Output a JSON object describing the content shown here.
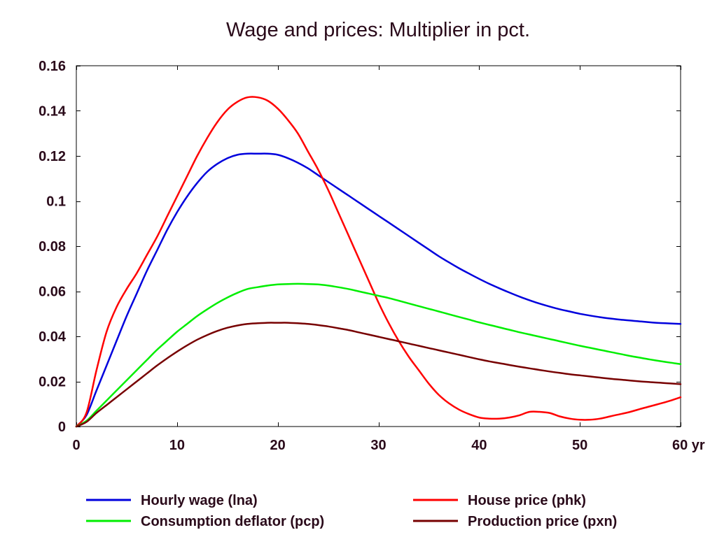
{
  "chart_data": {
    "type": "line",
    "title": "Wage and prices: Multiplier in pct.",
    "xlabel": "",
    "ylabel": "",
    "xlim": [
      0,
      60
    ],
    "ylim": [
      0,
      0.16
    ],
    "x_ticks": [
      0,
      10,
      20,
      30,
      40,
      50,
      60
    ],
    "x_tick_labels": [
      "0",
      "10",
      "20",
      "30",
      "40",
      "50",
      "60 yr"
    ],
    "y_ticks": [
      0,
      0.02,
      0.04,
      0.06,
      0.08,
      0.1,
      0.12,
      0.14,
      0.16
    ],
    "y_tick_labels": [
      "0",
      "0.02",
      "0.04",
      "0.06",
      "0.08",
      "0.1",
      "0.12",
      "0.14",
      "0.16"
    ],
    "grid": false,
    "legend_position": "bottom",
    "x": [
      0,
      1,
      2,
      3,
      4,
      5,
      6,
      7,
      8,
      9,
      10,
      11,
      12,
      13,
      14,
      15,
      16,
      17,
      18,
      19,
      20,
      21,
      22,
      23,
      24,
      25,
      26,
      27,
      28,
      29,
      30,
      31,
      32,
      33,
      34,
      35,
      36,
      37,
      38,
      39,
      40,
      41,
      42,
      43,
      44,
      45,
      46,
      47,
      48,
      49,
      50,
      51,
      52,
      53,
      54,
      55,
      56,
      57,
      58,
      59,
      60
    ],
    "series": [
      {
        "name": "Hourly wage (lna)",
        "color": "#0000dd",
        "values": [
          0,
          0.005,
          0.016,
          0.027,
          0.038,
          0.049,
          0.059,
          0.069,
          0.078,
          0.087,
          0.095,
          0.102,
          0.108,
          0.113,
          0.1165,
          0.119,
          0.1205,
          0.121,
          0.121,
          0.121,
          0.1205,
          0.119,
          0.117,
          0.1145,
          0.1115,
          0.1085,
          0.1055,
          0.1025,
          0.0995,
          0.0965,
          0.0935,
          0.0905,
          0.0875,
          0.0845,
          0.0815,
          0.0785,
          0.0755,
          0.0728,
          0.0702,
          0.0678,
          0.0655,
          0.0633,
          0.0613,
          0.0594,
          0.0576,
          0.056,
          0.0545,
          0.0532,
          0.052,
          0.051,
          0.05,
          0.0492,
          0.0485,
          0.0479,
          0.0474,
          0.047,
          0.0466,
          0.0462,
          0.0459,
          0.0457,
          0.0455
        ]
      },
      {
        "name": "House price (phk)",
        "color": "#ff0000",
        "values": [
          0,
          0.006,
          0.025,
          0.042,
          0.053,
          0.061,
          0.068,
          0.076,
          0.084,
          0.093,
          0.102,
          0.111,
          0.12,
          0.128,
          0.135,
          0.1405,
          0.144,
          0.146,
          0.146,
          0.1445,
          0.141,
          0.136,
          0.13,
          0.122,
          0.114,
          0.105,
          0.095,
          0.085,
          0.075,
          0.065,
          0.055,
          0.046,
          0.038,
          0.031,
          0.025,
          0.019,
          0.014,
          0.0103,
          0.0075,
          0.0055,
          0.004,
          0.0035,
          0.0035,
          0.004,
          0.005,
          0.0065,
          0.0065,
          0.006,
          0.0045,
          0.0035,
          0.003,
          0.003,
          0.0035,
          0.0045,
          0.0055,
          0.0065,
          0.0078,
          0.009,
          0.0102,
          0.0115,
          0.013
        ]
      },
      {
        "name": "Consumption deflator (pcp)",
        "color": "#00ee00",
        "values": [
          0,
          0.0025,
          0.007,
          0.0115,
          0.016,
          0.0205,
          0.025,
          0.0295,
          0.034,
          0.038,
          0.042,
          0.0455,
          0.049,
          0.052,
          0.0548,
          0.0572,
          0.0593,
          0.061,
          0.0618,
          0.0625,
          0.063,
          0.0632,
          0.0633,
          0.0632,
          0.063,
          0.0625,
          0.0618,
          0.061,
          0.06,
          0.059,
          0.058,
          0.057,
          0.0558,
          0.0546,
          0.0534,
          0.0522,
          0.051,
          0.0498,
          0.0486,
          0.0474,
          0.0462,
          0.0451,
          0.044,
          0.0429,
          0.0418,
          0.0408,
          0.0398,
          0.0388,
          0.0378,
          0.0368,
          0.0358,
          0.0349,
          0.034,
          0.0331,
          0.0322,
          0.0313,
          0.0305,
          0.0297,
          0.029,
          0.0283,
          0.0277
        ]
      },
      {
        "name": "Production price (pxn)",
        "color": "#770000",
        "values": [
          0,
          0.002,
          0.006,
          0.0095,
          0.013,
          0.0165,
          0.02,
          0.0235,
          0.027,
          0.0302,
          0.0332,
          0.036,
          0.0385,
          0.0406,
          0.0424,
          0.0438,
          0.0448,
          0.0455,
          0.0458,
          0.046,
          0.046,
          0.046,
          0.0458,
          0.0455,
          0.045,
          0.0444,
          0.0436,
          0.0428,
          0.0418,
          0.0408,
          0.0398,
          0.0388,
          0.0378,
          0.0368,
          0.0358,
          0.0348,
          0.0338,
          0.0328,
          0.0318,
          0.0308,
          0.0298,
          0.0289,
          0.0281,
          0.0273,
          0.0265,
          0.0258,
          0.0251,
          0.0244,
          0.0238,
          0.0232,
          0.0227,
          0.0222,
          0.0217,
          0.0212,
          0.0208,
          0.0204,
          0.02,
          0.0197,
          0.0194,
          0.0191,
          0.0188
        ]
      }
    ]
  }
}
